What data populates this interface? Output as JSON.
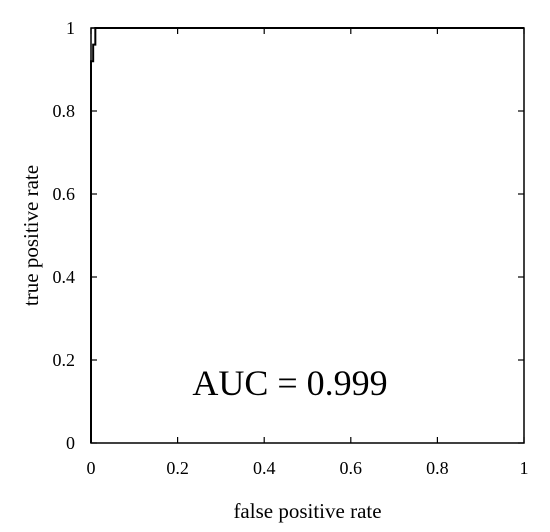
{
  "chart_data": {
    "type": "line",
    "title": "",
    "xlabel": "false positive rate",
    "ylabel": "true positive rate",
    "xlim": [
      0,
      1
    ],
    "ylim": [
      0,
      1
    ],
    "xticks": [
      "0",
      "0.2",
      "0.4",
      "0.6",
      "0.8",
      "1"
    ],
    "yticks": [
      "0",
      "0.2",
      "0.4",
      "0.6",
      "0.8",
      "1"
    ],
    "grid": false,
    "legend": "none",
    "annotation": "AUC = 0.999",
    "series": [
      {
        "x": [
          0,
          0,
          0.005,
          0.005,
          0.01,
          0.01,
          1
        ],
        "y": [
          0,
          0.92,
          0.92,
          0.96,
          0.96,
          1,
          1
        ]
      }
    ]
  }
}
